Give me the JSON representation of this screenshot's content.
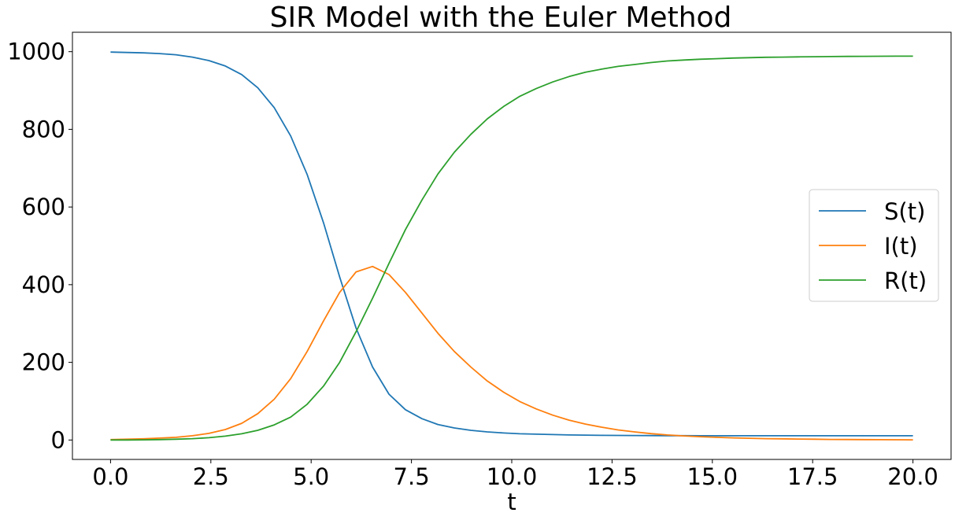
{
  "chart_data": {
    "type": "line",
    "title": "SIR Model with the Euler Method",
    "xlabel": "t",
    "ylabel": "",
    "xlim": [
      -0.95,
      20.95
    ],
    "ylim": [
      -50,
      1050
    ],
    "xticks": [
      0,
      2.5,
      5,
      7.5,
      10,
      12.5,
      15,
      17.5,
      20
    ],
    "xtick_labels": [
      "0.0",
      "2.5",
      "5.0",
      "7.5",
      "10.0",
      "12.5",
      "15.0",
      "17.5",
      "20.0"
    ],
    "yticks": [
      0,
      200,
      400,
      600,
      800,
      1000
    ],
    "ytick_labels": [
      "0",
      "200",
      "400",
      "600",
      "800",
      "1000"
    ],
    "grid": false,
    "legend_position": "center-right",
    "x": [
      0.0,
      0.41,
      0.82,
      1.22,
      1.63,
      2.04,
      2.45,
      2.86,
      3.27,
      3.67,
      4.08,
      4.49,
      4.9,
      5.31,
      5.71,
      6.12,
      6.53,
      6.94,
      7.35,
      7.76,
      8.16,
      8.57,
      8.98,
      9.39,
      9.8,
      10.2,
      10.61,
      11.02,
      11.43,
      11.84,
      12.24,
      12.65,
      13.06,
      13.47,
      13.88,
      14.29,
      14.69,
      15.1,
      15.51,
      15.92,
      16.33,
      16.73,
      17.14,
      17.55,
      17.96,
      18.37,
      18.78,
      19.18,
      19.59,
      20.0
    ],
    "series": [
      {
        "name": "S(t)",
        "color": "#1f77b4",
        "values": [
          999,
          998,
          997,
          995,
          992,
          986,
          977,
          963,
          941,
          907,
          856,
          783,
          684,
          559,
          420,
          288,
          188,
          118,
          78,
          55,
          40,
          31,
          25,
          21,
          18,
          16,
          15,
          14,
          13,
          12.5,
          12,
          11.8,
          11.6,
          11.4,
          11.2,
          11.1,
          11,
          11,
          11,
          11,
          11,
          11,
          11,
          11,
          11,
          11,
          11,
          11,
          11,
          11
        ]
      },
      {
        "name": "I(t)",
        "color": "#ff7f0e",
        "values": [
          1,
          2,
          3,
          5,
          7,
          11,
          17,
          27,
          43,
          68,
          105,
          158,
          228,
          307,
          380,
          433,
          447,
          426,
          380,
          327,
          275,
          228,
          188,
          152,
          123,
          99,
          80,
          64,
          51,
          41,
          33,
          26,
          21,
          16.5,
          13,
          10.5,
          8.5,
          7,
          5.5,
          4.5,
          3.5,
          3,
          2.5,
          2,
          1.5,
          1.2,
          1,
          0.8,
          0.6,
          0.5
        ]
      },
      {
        "name": "R(t)",
        "color": "#2ca02c",
        "values": [
          0,
          0,
          0.5,
          1,
          2,
          3.5,
          6,
          10,
          16,
          25,
          39,
          59,
          92,
          139,
          200,
          279,
          365,
          455,
          542,
          618,
          685,
          741,
          787,
          827,
          859,
          885,
          905,
          922,
          936,
          947,
          955,
          962,
          967,
          972,
          976,
          978.5,
          980.5,
          982,
          983.5,
          984.5,
          985.5,
          986,
          986.5,
          987,
          987.5,
          987.8,
          988,
          988.2,
          988.4,
          988.5
        ]
      }
    ]
  }
}
